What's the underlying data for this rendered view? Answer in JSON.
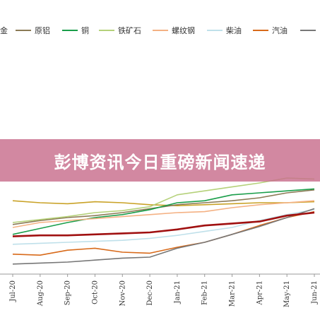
{
  "banner": {
    "title": "彭博资讯今日重磅新闻速递"
  },
  "chart_data": {
    "type": "line",
    "title": "",
    "xlabel": "",
    "ylabel": "",
    "ylim": [
      0,
      100
    ],
    "grid": false,
    "legend_placement": "top",
    "legend_first_fragment": "金",
    "categories": [
      "Jul-20",
      "Aug-20",
      "Sep-20",
      "Oct-20",
      "Nov-20",
      "Dec-20",
      "Jan-21",
      "Feb-21",
      "Mar-21",
      "Apr-21",
      "May-21",
      "Jun-21"
    ],
    "series": [
      {
        "name": "金",
        "color": "#c9a227",
        "values": [
          72,
          70,
          69,
          71,
          70,
          68,
          67,
          68,
          69,
          70,
          70,
          71
        ]
      },
      {
        "name": "原铝",
        "color": "#8b7a55",
        "values": [
          48,
          52,
          55,
          57,
          60,
          64,
          68,
          70,
          72,
          75,
          80,
          83
        ]
      },
      {
        "name": "铜",
        "color": "#1a9e4a",
        "values": [
          38,
          44,
          50,
          55,
          58,
          63,
          70,
          72,
          78,
          80,
          82,
          84
        ]
      },
      {
        "name": "铁矿石",
        "color": "#b5d17a",
        "values": [
          50,
          53,
          56,
          60,
          62,
          66,
          78,
          82,
          86,
          90,
          95,
          94
        ]
      },
      {
        "name": "螺纹钢",
        "color": "#f4b183",
        "values": [
          45,
          50,
          52,
          54,
          56,
          58,
          60,
          61,
          65,
          68,
          70,
          72
        ]
      },
      {
        "name": "柴油",
        "color": "#bfe0ea",
        "values": [
          28,
          29,
          30,
          31,
          32,
          34,
          37,
          41,
          45,
          52,
          58,
          63
        ]
      },
      {
        "name": "汽油",
        "color": "#d86a1a",
        "values": [
          18,
          17,
          22,
          24,
          20,
          19,
          25,
          30,
          38,
          47,
          55,
          61
        ]
      },
      {
        "name": "",
        "color": "#777777",
        "values": [
          8,
          9,
          10,
          12,
          14,
          15,
          24,
          30,
          38,
          46,
          55,
          64
        ]
      },
      {
        "name": "",
        "color": "#a01010",
        "values": [
          36,
          37,
          37,
          38,
          39,
          40,
          43,
          47,
          49,
          51,
          57,
          60
        ]
      }
    ]
  }
}
